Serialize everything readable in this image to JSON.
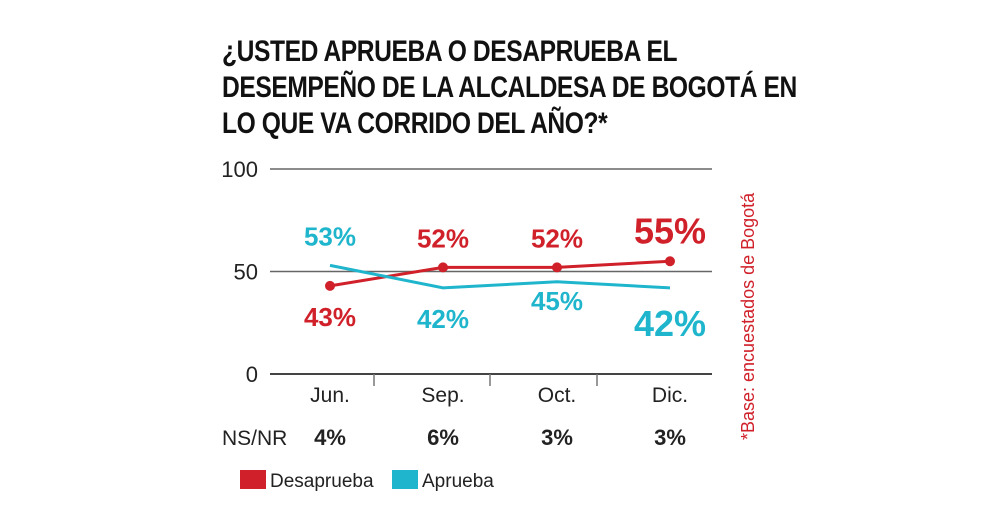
{
  "chart_data": {
    "type": "line",
    "title": "¿USTED APRUEBA O DESAPRUEBA EL\nDESEMPEÑO DE LA ALCALDESA DE BOGOTÁ EN\nLO QUE VA CORRIDO DEL AÑO?*",
    "categories": [
      "Jun.",
      "Sep.",
      "Oct.",
      "Dic."
    ],
    "ylim": [
      0,
      100
    ],
    "yticks": [
      "0",
      "50",
      "100"
    ],
    "grid": true,
    "series": [
      {
        "name": "Desaprueba",
        "color": "#d0202a",
        "values": [
          43,
          52,
          52,
          55
        ],
        "labels": [
          "43%",
          "52%",
          "52%",
          "55%"
        ]
      },
      {
        "name": "Aprueba",
        "color": "#1fb5cc",
        "values": [
          53,
          42,
          45,
          42
        ],
        "labels": [
          "53%",
          "42%",
          "45%",
          "42%"
        ]
      }
    ],
    "ns_nr": {
      "label": "NS/NR",
      "values": [
        "4%",
        "6%",
        "3%",
        "3%"
      ]
    },
    "note": "*Base: encuestados de Bogotá",
    "legend_position": "bottom-left"
  }
}
